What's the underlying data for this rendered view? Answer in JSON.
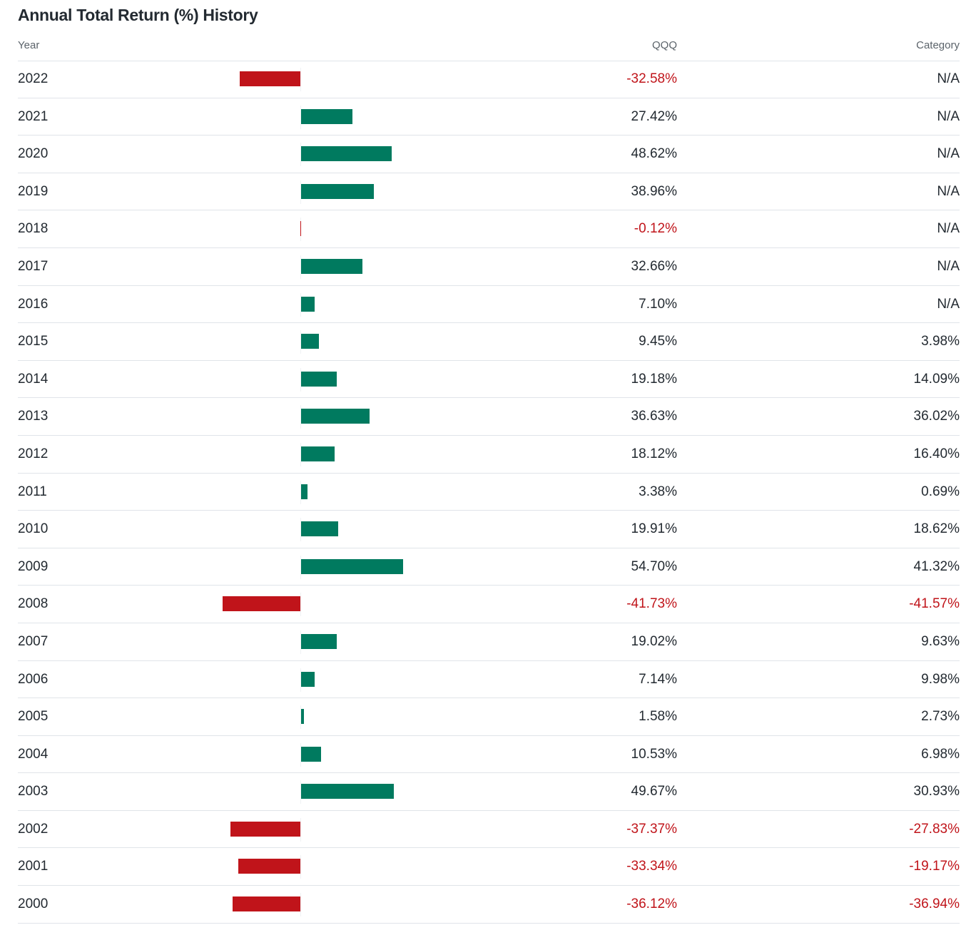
{
  "title": "Annual Total Return (%) History",
  "headers": {
    "year": "Year",
    "fund": "QQQ",
    "category": "Category"
  },
  "colors": {
    "positive": "#007a5f",
    "negative": "#c0141a"
  },
  "chart_data": {
    "type": "bar",
    "title": "Annual Total Return (%) History",
    "categories": [
      "2022",
      "2021",
      "2020",
      "2019",
      "2018",
      "2017",
      "2016",
      "2015",
      "2014",
      "2013",
      "2012",
      "2011",
      "2010",
      "2009",
      "2008",
      "2007",
      "2006",
      "2005",
      "2004",
      "2003",
      "2002",
      "2001",
      "2000"
    ],
    "series": [
      {
        "name": "QQQ",
        "values": [
          -32.58,
          27.42,
          48.62,
          38.96,
          -0.12,
          32.66,
          7.1,
          9.45,
          19.18,
          36.63,
          18.12,
          3.38,
          19.91,
          54.7,
          -41.73,
          19.02,
          7.14,
          1.58,
          10.53,
          49.67,
          -37.37,
          -33.34,
          -36.12
        ]
      }
    ],
    "rows": [
      {
        "year": "2022",
        "qqq": "-32.58%",
        "category": "N/A"
      },
      {
        "year": "2021",
        "qqq": "27.42%",
        "category": "N/A"
      },
      {
        "year": "2020",
        "qqq": "48.62%",
        "category": "N/A"
      },
      {
        "year": "2019",
        "qqq": "38.96%",
        "category": "N/A"
      },
      {
        "year": "2018",
        "qqq": "-0.12%",
        "category": "N/A"
      },
      {
        "year": "2017",
        "qqq": "32.66%",
        "category": "N/A"
      },
      {
        "year": "2016",
        "qqq": "7.10%",
        "category": "N/A"
      },
      {
        "year": "2015",
        "qqq": "9.45%",
        "category": "3.98%"
      },
      {
        "year": "2014",
        "qqq": "19.18%",
        "category": "14.09%"
      },
      {
        "year": "2013",
        "qqq": "36.63%",
        "category": "36.02%"
      },
      {
        "year": "2012",
        "qqq": "18.12%",
        "category": "16.40%"
      },
      {
        "year": "2011",
        "qqq": "3.38%",
        "category": "0.69%"
      },
      {
        "year": "2010",
        "qqq": "19.91%",
        "category": "18.62%"
      },
      {
        "year": "2009",
        "qqq": "54.70%",
        "category": "41.32%"
      },
      {
        "year": "2008",
        "qqq": "-41.73%",
        "category": "-41.57%"
      },
      {
        "year": "2007",
        "qqq": "19.02%",
        "category": "9.63%"
      },
      {
        "year": "2006",
        "qqq": "7.14%",
        "category": "9.98%"
      },
      {
        "year": "2005",
        "qqq": "1.58%",
        "category": "2.73%"
      },
      {
        "year": "2004",
        "qqq": "10.53%",
        "category": "6.98%"
      },
      {
        "year": "2003",
        "qqq": "49.67%",
        "category": "30.93%"
      },
      {
        "year": "2002",
        "qqq": "-37.37%",
        "category": "-27.83%"
      },
      {
        "year": "2001",
        "qqq": "-33.34%",
        "category": "-19.17%"
      },
      {
        "year": "2000",
        "qqq": "-36.12%",
        "category": "-36.94%"
      }
    ]
  }
}
